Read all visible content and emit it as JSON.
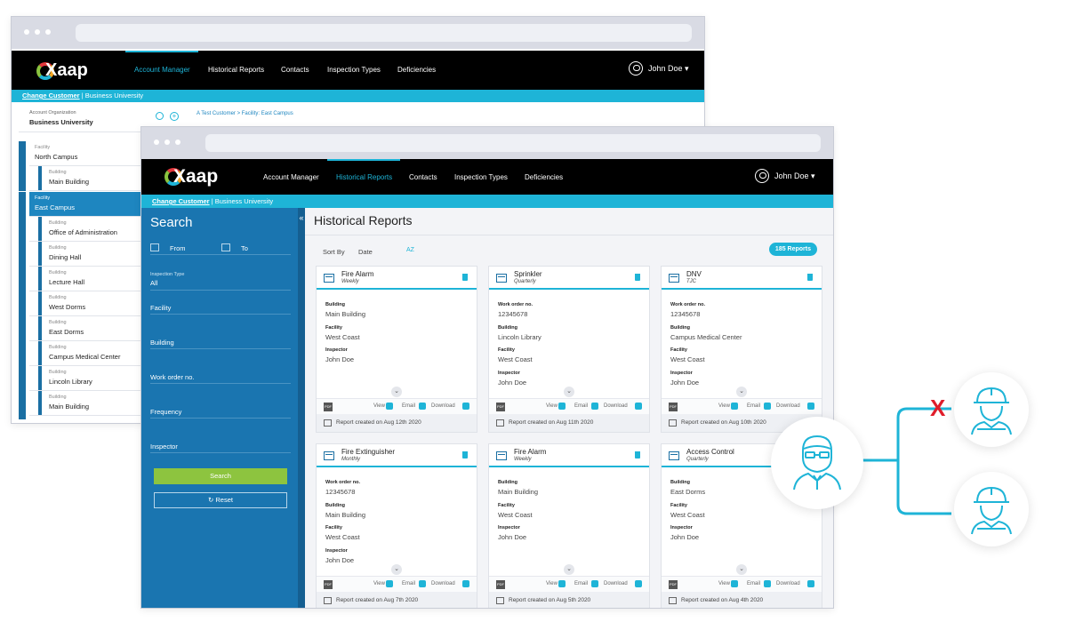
{
  "back_window": {
    "nav": [
      "Account Manager",
      "Historical Reports",
      "Contacts",
      "Inspection Types",
      "Deficiencies"
    ],
    "active_nav": "Account Manager",
    "user": "John Doe",
    "customer_link": "Change Customer",
    "customer_sep": "|",
    "customer_name": "Business University",
    "org_label": "Account Organization",
    "org_value": "Business University",
    "breadcrumb": "A Test Customer  >  Facility: East Campus",
    "tree": [
      {
        "small": "Facility",
        "label": "North Campus",
        "type": "facility"
      },
      {
        "small": "Building",
        "label": "Main Building",
        "type": "child"
      },
      {
        "small": "Facility",
        "label": "East Campus",
        "type": "selected"
      },
      {
        "small": "Building",
        "label": "Office of Administration",
        "type": "child"
      },
      {
        "small": "Building",
        "label": "Dining Hall",
        "type": "child"
      },
      {
        "small": "Building",
        "label": "Lecture Hall",
        "type": "child"
      },
      {
        "small": "Building",
        "label": "West Dorms",
        "type": "child"
      },
      {
        "small": "Building",
        "label": "East Dorms",
        "type": "child"
      },
      {
        "small": "Building",
        "label": "Campus Medical Center",
        "type": "child"
      },
      {
        "small": "Building",
        "label": "Lincoln Library",
        "type": "child"
      },
      {
        "small": "Building",
        "label": "Main Building",
        "type": "child"
      }
    ]
  },
  "front_window": {
    "logo": "Xaap",
    "nav": [
      "Account Manager",
      "Historical Reports",
      "Contacts",
      "Inspection Types",
      "Deficiencies"
    ],
    "active_nav": "Historical Reports",
    "user": "John Doe",
    "customer_link": "Change Customer",
    "customer_sep": "|",
    "customer_name": "Business University",
    "search": {
      "title": "Search",
      "from": "From",
      "to": "To",
      "inspection_type_label": "Inspection Type",
      "inspection_type_value": "All",
      "facility": "Facility",
      "building": "Building",
      "work_order": "Work order no.",
      "frequency": "Frequency",
      "inspector": "Inspector",
      "search_button": "Search",
      "reset_button": "Reset"
    },
    "collapse_glyph": "«",
    "title": "Historical Reports",
    "sort_by": "Sort By",
    "sort_date": "Date",
    "sort_az": "AZ",
    "reports_count": "185  Reports",
    "action_view": "View",
    "action_email": "Email",
    "action_download": "Download",
    "created_prefix": "Report created on",
    "cards": [
      {
        "title": "Fire Alarm",
        "freq": "Weekly",
        "fields": [
          [
            "Building",
            "Main Building"
          ],
          [
            "Facility",
            "West Coast"
          ],
          [
            "Inspector",
            "John Doe"
          ]
        ],
        "date": "Aug 12th 2020"
      },
      {
        "title": "Sprinkler",
        "freq": "Quarterly",
        "fields": [
          [
            "Work order no.",
            "12345678"
          ],
          [
            "Building",
            "Lincoln Library"
          ],
          [
            "Facility",
            "West Coast"
          ],
          [
            "Inspector",
            "John Doe"
          ]
        ],
        "date": "Aug 11th 2020"
      },
      {
        "title": "DNV",
        "freq": "TJC",
        "fields": [
          [
            "Work order no.",
            "12345678"
          ],
          [
            "Building",
            "Campus Medical Center"
          ],
          [
            "Facility",
            "West Coast"
          ],
          [
            "Inspector",
            "John Doe"
          ]
        ],
        "date": "Aug 10th 2020"
      },
      {
        "title": "Fire Extinguisher",
        "freq": "Monthly",
        "fields": [
          [
            "Work order no.",
            "12345678"
          ],
          [
            "Building",
            "Main Building"
          ],
          [
            "Facility",
            "West Coast"
          ],
          [
            "Inspector",
            "John Doe"
          ]
        ],
        "date": "Aug 7th 2020"
      },
      {
        "title": "Fire Alarm",
        "freq": "Weekly",
        "fields": [
          [
            "Building",
            "Main Building"
          ],
          [
            "Facility",
            "West Coast"
          ],
          [
            "Inspector",
            "John Doe"
          ]
        ],
        "date": "Aug 5th 2020"
      },
      {
        "title": "Access Control",
        "freq": "Quarterly",
        "fields": [
          [
            "Building",
            "East Dorms"
          ],
          [
            "Facility",
            "West Coast"
          ],
          [
            "Inspector",
            "John Doe"
          ]
        ],
        "date": "Aug 4th 2020"
      }
    ]
  },
  "illustration": {
    "x_mark": "X",
    "accent": "#1eb4d7",
    "cross_color": "#e01e2b"
  }
}
